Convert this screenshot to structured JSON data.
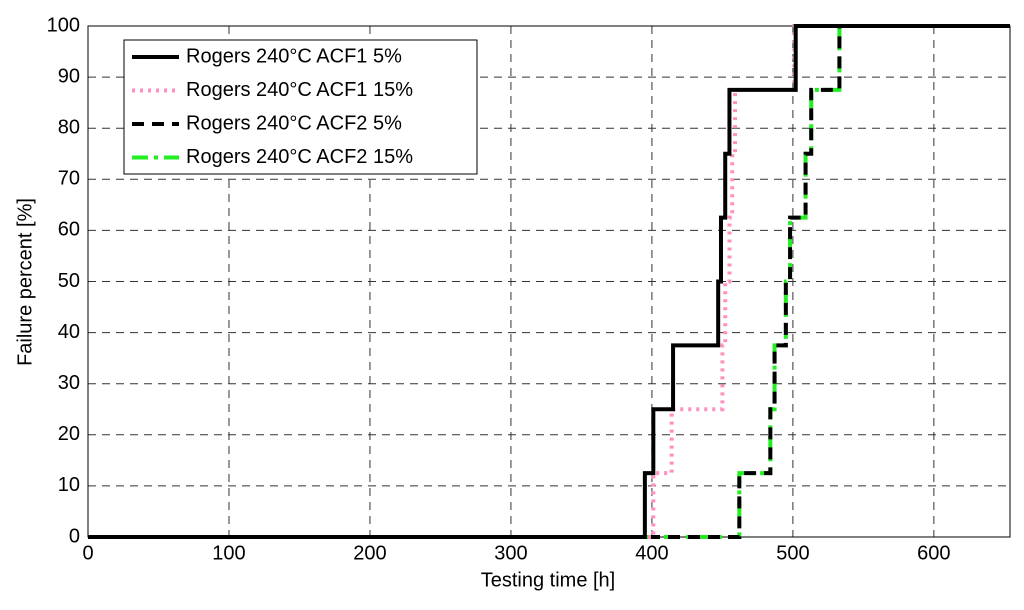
{
  "chart_data": {
    "type": "line",
    "xlabel": "Testing time [h]",
    "ylabel": "Failure percent [%]",
    "xlim": [
      0,
      654
    ],
    "ylim": [
      0,
      100
    ],
    "xticks": [
      0,
      100,
      200,
      300,
      400,
      500,
      600
    ],
    "yticks": [
      0,
      10,
      20,
      30,
      40,
      50,
      60,
      70,
      80,
      90,
      100
    ],
    "grid": true,
    "legend": "upper left",
    "series": [
      {
        "name": "Rogers 240°C ACF1 5%",
        "color": "#000000",
        "style": "solid",
        "x": [
          0,
          395,
          395,
          401,
          401,
          415,
          415,
          447,
          447,
          449,
          449,
          452,
          452,
          455,
          455,
          502,
          502,
          654
        ],
        "values": [
          0,
          0,
          12.5,
          12.5,
          25,
          25,
          37.5,
          37.5,
          50,
          50,
          62.5,
          62.5,
          75,
          75,
          87.5,
          87.5,
          100,
          100
        ]
      },
      {
        "name": "Rogers 240°C ACF1 15%",
        "color": "#ff8fc0",
        "style": "dotted",
        "x": [
          0,
          401,
          401,
          414,
          414,
          450,
          450,
          452,
          452,
          455,
          455,
          457,
          457,
          459,
          459,
          501,
          501,
          654
        ],
        "values": [
          0,
          0,
          12.5,
          12.5,
          25,
          25,
          37.5,
          37.5,
          50,
          50,
          62.5,
          62.5,
          75,
          75,
          87.5,
          87.5,
          100,
          100
        ]
      },
      {
        "name": "Rogers 240°C ACF2 5%",
        "color": "#000000",
        "style": "dashed",
        "x": [
          0,
          462,
          462,
          484,
          484,
          487,
          487,
          495,
          495,
          498,
          498,
          509,
          509,
          513,
          513,
          533,
          533,
          654
        ],
        "values": [
          0,
          0,
          12.5,
          12.5,
          25,
          25,
          37.5,
          37.5,
          50,
          50,
          62.5,
          62.5,
          75,
          75,
          87.5,
          87.5,
          100,
          100
        ]
      },
      {
        "name": "Rogers 240°C ACF2 15%",
        "color": "#22ee22",
        "style": "dashdot",
        "x": [
          0,
          462,
          462,
          484,
          484,
          487,
          487,
          495,
          495,
          498,
          498,
          509,
          509,
          513,
          513,
          533,
          533,
          654
        ],
        "values": [
          0,
          0,
          12.5,
          12.5,
          25,
          25,
          37.5,
          37.5,
          50,
          50,
          62.5,
          62.5,
          75,
          75,
          87.5,
          87.5,
          100,
          100
        ]
      }
    ]
  }
}
